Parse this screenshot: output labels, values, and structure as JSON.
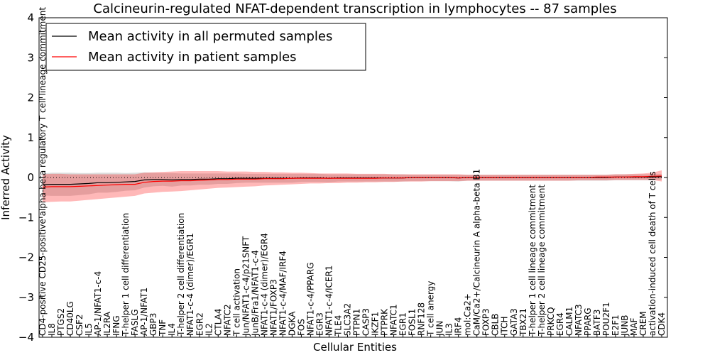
{
  "chart_data": {
    "type": "line",
    "title": "Calcineurin-regulated NFAT-dependent transcription in lymphocytes -- 87 samples",
    "xlabel": "Cellular Entities",
    "ylabel": "Inferred Activity",
    "ylim": [
      -4,
      4
    ],
    "yticks": [
      -4,
      -3,
      -2,
      -1,
      0,
      1,
      2,
      3,
      4
    ],
    "ytick_labels": [
      "−4",
      "−3",
      "−2",
      "−1",
      "0",
      "1",
      "2",
      "3",
      "4"
    ],
    "legend_position": "top-left",
    "categories": [
      "CD4-positive CD25-positive alpha-beta regulatory T cell lineage commitment",
      "IL8",
      "PTGS2",
      "CD40LG",
      "CSF2",
      "IL5",
      "AP-1/NFAT1-c-4",
      "IL2RA",
      "IFNG",
      "T-helper 1 cell differentiation",
      "FASLG",
      "AP-1/NFAT1",
      "GBP3",
      "TNF",
      "IL4",
      "T-helper 2 cell differentiation",
      "NFAT1-c-4 (dimer)/EGR1",
      "EGR2",
      "IL2",
      "CTLA4",
      "NFATC2",
      "T cell activation",
      "Jun/NFAT1-c-4/p21SNFT",
      "JunB/Fra1/NFAT1-c-4",
      "NFAT1-c-4 (dimer)/EGR4",
      "NFAT1/FOXP3",
      "NFAT1-c-4/MAF/IRF4",
      "DGKA",
      "FOS",
      "NFAT1-c-4/PPARG",
      "EGR3",
      "NFAT1-c-4/ICER1",
      "TLE4",
      "SLC3A2",
      "PTPN1",
      "CASP3",
      "IKZF1",
      "PTPRK",
      "NFATC1",
      "EGR1",
      "FOSL1",
      "RNF128",
      "T cell anergy",
      "JUN",
      "IL3",
      "IRF4",
      "mol:Ca2+",
      "CaM/Ca2+/Calcineurin A alpha-beta B1",
      "FOXP3",
      "CBLB",
      "ITCH",
      "GATA3",
      "TBX21",
      "T-helper 1 cell lineage commitment",
      "T-helper 2 cell lineage commitment",
      "PRKCQ",
      "EGR4",
      "CALM1",
      "NFATC3",
      "PPARG",
      "BATF3",
      "POU2F1",
      "E2F1",
      "JUNB",
      "MAF",
      "CREM",
      "activation-induced cell death of T cells",
      "CDK4"
    ],
    "series": [
      {
        "name": "Mean activity in all permuted samples",
        "color": "#000000",
        "values": [
          -0.18,
          -0.17,
          -0.17,
          -0.17,
          -0.16,
          -0.15,
          -0.13,
          -0.13,
          -0.12,
          -0.11,
          -0.1,
          -0.06,
          -0.05,
          -0.05,
          -0.06,
          -0.05,
          -0.05,
          -0.04,
          -0.04,
          -0.03,
          -0.03,
          -0.02,
          -0.02,
          -0.02,
          -0.02,
          -0.02,
          -0.02,
          -0.02,
          -0.01,
          -0.01,
          -0.01,
          -0.02,
          -0.01,
          -0.01,
          -0.01,
          -0.01,
          -0.01,
          -0.01,
          -0.01,
          -0.01,
          0.0,
          0.0,
          0.0,
          0.0,
          0.0,
          -0.01,
          0.0,
          0.0,
          0.0,
          0.0,
          0.0,
          0.0,
          0.0,
          0.0,
          0.0,
          0.0,
          0.0,
          0.0,
          0.0,
          0.0,
          0.0,
          0.0,
          0.01,
          0.01,
          0.01,
          0.01,
          0.01,
          0.02
        ],
        "upper": [
          0.1,
          0.12,
          0.12,
          0.12,
          0.11,
          0.11,
          0.12,
          0.12,
          0.12,
          0.11,
          0.12,
          0.13,
          0.12,
          0.11,
          0.11,
          0.1,
          0.1,
          0.1,
          0.1,
          0.1,
          0.1,
          0.1,
          0.09,
          0.09,
          0.09,
          0.09,
          0.09,
          0.09,
          0.09,
          0.09,
          0.09,
          0.08,
          0.08,
          0.08,
          0.08,
          0.08,
          0.08,
          0.08,
          0.08,
          0.08,
          0.07,
          0.07,
          0.07,
          0.07,
          0.07,
          0.07,
          0.07,
          0.07,
          0.07,
          0.07,
          0.07,
          0.07,
          0.07,
          0.07,
          0.07,
          0.07,
          0.07,
          0.07,
          0.07,
          0.07,
          0.07,
          0.07,
          0.08,
          0.08,
          0.08,
          0.08,
          0.08,
          0.09
        ],
        "lower": [
          -0.45,
          -0.46,
          -0.46,
          -0.46,
          -0.44,
          -0.42,
          -0.38,
          -0.38,
          -0.36,
          -0.33,
          -0.32,
          -0.25,
          -0.22,
          -0.21,
          -0.23,
          -0.2,
          -0.2,
          -0.18,
          -0.18,
          -0.16,
          -0.16,
          -0.14,
          -0.13,
          -0.13,
          -0.13,
          -0.13,
          -0.13,
          -0.13,
          -0.11,
          -0.11,
          -0.11,
          -0.12,
          -0.1,
          -0.1,
          -0.1,
          -0.1,
          -0.1,
          -0.1,
          -0.1,
          -0.1,
          -0.09,
          -0.09,
          -0.09,
          -0.09,
          -0.09,
          -0.1,
          -0.08,
          -0.08,
          -0.08,
          -0.08,
          -0.08,
          -0.08,
          -0.08,
          -0.08,
          -0.08,
          -0.08,
          -0.08,
          -0.08,
          -0.08,
          -0.08,
          -0.08,
          -0.08,
          -0.07,
          -0.07,
          -0.07,
          -0.07,
          -0.07,
          -0.06
        ]
      },
      {
        "name": "Mean activity in patient samples",
        "color": "#ff0000",
        "values": [
          -0.24,
          -0.23,
          -0.23,
          -0.23,
          -0.22,
          -0.21,
          -0.2,
          -0.19,
          -0.18,
          -0.17,
          -0.17,
          -0.12,
          -0.1,
          -0.09,
          -0.09,
          -0.08,
          -0.08,
          -0.07,
          -0.06,
          -0.05,
          -0.05,
          -0.04,
          -0.04,
          -0.04,
          -0.03,
          -0.03,
          -0.03,
          -0.02,
          -0.02,
          -0.02,
          -0.02,
          -0.02,
          -0.02,
          -0.02,
          -0.02,
          -0.02,
          -0.02,
          -0.01,
          -0.01,
          -0.01,
          0.0,
          0.0,
          0.0,
          0.0,
          0.0,
          -0.01,
          0.0,
          0.0,
          0.0,
          0.0,
          0.0,
          0.0,
          0.0,
          0.0,
          0.0,
          0.0,
          0.0,
          0.0,
          0.0,
          0.0,
          0.01,
          0.01,
          0.01,
          0.01,
          0.02,
          0.02,
          0.03,
          0.04
        ],
        "upper": [
          0.08,
          0.09,
          0.09,
          0.08,
          0.08,
          0.08,
          0.08,
          0.08,
          0.08,
          0.08,
          0.08,
          0.12,
          0.13,
          0.14,
          0.15,
          0.16,
          0.16,
          0.16,
          0.16,
          0.16,
          0.15,
          0.15,
          0.15,
          0.14,
          0.14,
          0.13,
          0.13,
          0.12,
          0.12,
          0.11,
          0.1,
          0.1,
          0.1,
          0.1,
          0.09,
          0.09,
          0.09,
          0.09,
          0.08,
          0.08,
          0.08,
          0.08,
          0.08,
          0.08,
          0.08,
          0.08,
          0.07,
          0.07,
          0.07,
          0.07,
          0.07,
          0.07,
          0.07,
          0.07,
          0.07,
          0.07,
          0.07,
          0.07,
          0.07,
          0.07,
          0.07,
          0.07,
          0.08,
          0.08,
          0.09,
          0.1,
          0.12,
          0.18
        ],
        "lower": [
          -0.62,
          -0.61,
          -0.6,
          -0.6,
          -0.58,
          -0.56,
          -0.54,
          -0.52,
          -0.5,
          -0.48,
          -0.46,
          -0.4,
          -0.38,
          -0.36,
          -0.35,
          -0.34,
          -0.32,
          -0.3,
          -0.28,
          -0.26,
          -0.25,
          -0.24,
          -0.23,
          -0.22,
          -0.2,
          -0.19,
          -0.18,
          -0.17,
          -0.16,
          -0.15,
          -0.15,
          -0.14,
          -0.14,
          -0.13,
          -0.13,
          -0.12,
          -0.12,
          -0.11,
          -0.11,
          -0.1,
          -0.1,
          -0.1,
          -0.09,
          -0.09,
          -0.09,
          -0.09,
          -0.08,
          -0.08,
          -0.08,
          -0.08,
          -0.08,
          -0.08,
          -0.08,
          -0.08,
          -0.08,
          -0.08,
          -0.08,
          -0.08,
          -0.07,
          -0.07,
          -0.07,
          -0.07,
          -0.06,
          -0.06,
          -0.06,
          -0.06,
          -0.06,
          -0.1
        ]
      }
    ]
  }
}
